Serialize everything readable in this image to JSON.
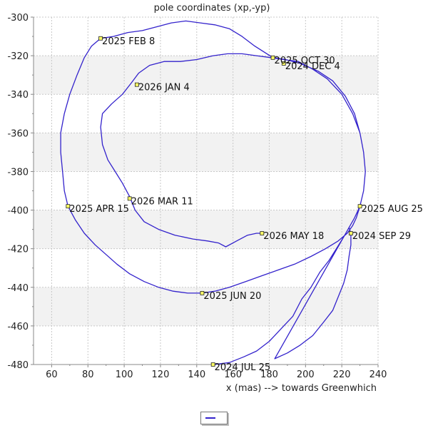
{
  "chart_data": {
    "type": "line",
    "title": "pole coordinates (xp,-yp)",
    "xlabel": "x (mas) --> towards Greenwhich",
    "ylabel": "",
    "xlim": [
      50,
      240
    ],
    "ylim": [
      -480,
      -300
    ],
    "xticks": [
      60,
      80,
      100,
      120,
      140,
      160,
      180,
      200,
      220,
      240
    ],
    "yticks": [
      -300,
      -320,
      -340,
      -360,
      -380,
      -400,
      -420,
      -440,
      -460,
      -480
    ],
    "grid": true,
    "line_color": "#3322cc",
    "band_color": "#f2f2f2",
    "series": [
      {
        "points": [
          [
            149,
            -480
          ],
          [
            158,
            -479
          ],
          [
            166,
            -476
          ],
          [
            173,
            -473
          ],
          [
            180,
            -468
          ],
          [
            186,
            -462
          ],
          [
            193,
            -455
          ],
          [
            198,
            -446
          ],
          [
            203,
            -440
          ],
          [
            208,
            -432
          ],
          [
            213,
            -426
          ],
          [
            217,
            -420
          ],
          [
            221,
            -414
          ],
          [
            224,
            -409
          ],
          [
            225,
            -412
          ],
          [
            225,
            -418
          ],
          [
            224,
            -424
          ],
          [
            223,
            -431
          ],
          [
            221,
            -438
          ],
          [
            218,
            -445
          ],
          [
            215,
            -452
          ],
          [
            210,
            -458
          ],
          [
            204,
            -465
          ],
          [
            197,
            -470
          ],
          [
            190,
            -474
          ],
          [
            183,
            -477
          ],
          [
            224,
            -409
          ],
          [
            227,
            -404
          ],
          [
            230,
            -398
          ],
          [
            232,
            -390
          ],
          [
            233,
            -380
          ],
          [
            232,
            -370
          ],
          [
            230,
            -360
          ],
          [
            227,
            -350
          ],
          [
            222,
            -341
          ],
          [
            215,
            -333
          ],
          [
            207,
            -328
          ],
          [
            197,
            -324
          ],
          [
            189,
            -322
          ],
          [
            182,
            -321
          ],
          [
            172,
            -315
          ],
          [
            165,
            -310
          ],
          [
            158,
            -306
          ],
          [
            150,
            -304
          ],
          [
            142,
            -303
          ],
          [
            134,
            -302
          ],
          [
            126,
            -303
          ],
          [
            118,
            -305
          ],
          [
            110,
            -307
          ],
          [
            102,
            -308
          ],
          [
            94,
            -310
          ],
          [
            87,
            -311
          ],
          [
            82,
            -315
          ],
          [
            78,
            -321
          ],
          [
            74,
            -330
          ],
          [
            70,
            -340
          ],
          [
            67,
            -350
          ],
          [
            65,
            -360
          ],
          [
            65,
            -370
          ],
          [
            66,
            -380
          ],
          [
            67,
            -390
          ],
          [
            69,
            -398
          ],
          [
            73,
            -405
          ],
          [
            78,
            -412
          ],
          [
            84,
            -418
          ],
          [
            90,
            -423
          ],
          [
            96,
            -428
          ],
          [
            103,
            -433
          ],
          [
            111,
            -437
          ],
          [
            119,
            -440
          ],
          [
            127,
            -442
          ],
          [
            135,
            -443
          ],
          [
            143,
            -443
          ],
          [
            150,
            -442
          ],
          [
            158,
            -440
          ],
          [
            167,
            -437
          ],
          [
            176,
            -434
          ],
          [
            185,
            -431
          ],
          [
            194,
            -428
          ],
          [
            203,
            -424
          ],
          [
            211,
            -420
          ],
          [
            218,
            -416
          ],
          [
            223,
            -412
          ],
          [
            226,
            -408
          ],
          [
            228,
            -404
          ],
          [
            230,
            -398
          ],
          [
            232,
            -390
          ],
          [
            233,
            -380
          ],
          [
            232,
            -370
          ],
          [
            230,
            -360
          ],
          [
            226,
            -350
          ],
          [
            220,
            -340
          ],
          [
            212,
            -332
          ],
          [
            204,
            -327
          ],
          [
            196,
            -323
          ],
          [
            188,
            -322
          ],
          [
            181,
            -321
          ],
          [
            173,
            -320
          ],
          [
            165,
            -319
          ],
          [
            157,
            -319
          ],
          [
            149,
            -320
          ],
          [
            140,
            -322
          ],
          [
            131,
            -323
          ],
          [
            122,
            -323
          ],
          [
            114,
            -325
          ],
          [
            108,
            -329
          ],
          [
            104,
            -334
          ],
          [
            99,
            -340
          ],
          [
            93,
            -345
          ],
          [
            88,
            -350
          ],
          [
            87,
            -357
          ],
          [
            88,
            -366
          ],
          [
            91,
            -374
          ],
          [
            95,
            -380
          ],
          [
            99,
            -386
          ],
          [
            103,
            -393
          ],
          [
            106,
            -400
          ],
          [
            111,
            -406
          ],
          [
            119,
            -410
          ],
          [
            128,
            -413
          ],
          [
            138,
            -415
          ],
          [
            146,
            -416
          ],
          [
            152,
            -417
          ],
          [
            156,
            -419
          ],
          [
            162,
            -416
          ],
          [
            168,
            -413
          ],
          [
            173,
            -412
          ],
          [
            176,
            -412
          ]
        ]
      }
    ],
    "annotations": [
      {
        "text": "2024 JUL 25",
        "x": 149,
        "y": -480
      },
      {
        "text": "2024 SEP 29",
        "x": 225,
        "y": -412
      },
      {
        "text": "2024 DEC 4",
        "x": 188,
        "y": -324
      },
      {
        "text": "2025 FEB 8",
        "x": 87,
        "y": -311
      },
      {
        "text": "2025 APR 15",
        "x": 69,
        "y": -398
      },
      {
        "text": "2025 JUN 20",
        "x": 143,
        "y": -443
      },
      {
        "text": "2025 AUG 25",
        "x": 230,
        "y": -398
      },
      {
        "text": "2025 OCT 30",
        "x": 182,
        "y": -321
      },
      {
        "text": "2026 JAN 4",
        "x": 107,
        "y": -335
      },
      {
        "text": "2026 MAR 11",
        "x": 103,
        "y": -394
      },
      {
        "text": "2026 MAY 18",
        "x": 176,
        "y": -412
      }
    ]
  }
}
